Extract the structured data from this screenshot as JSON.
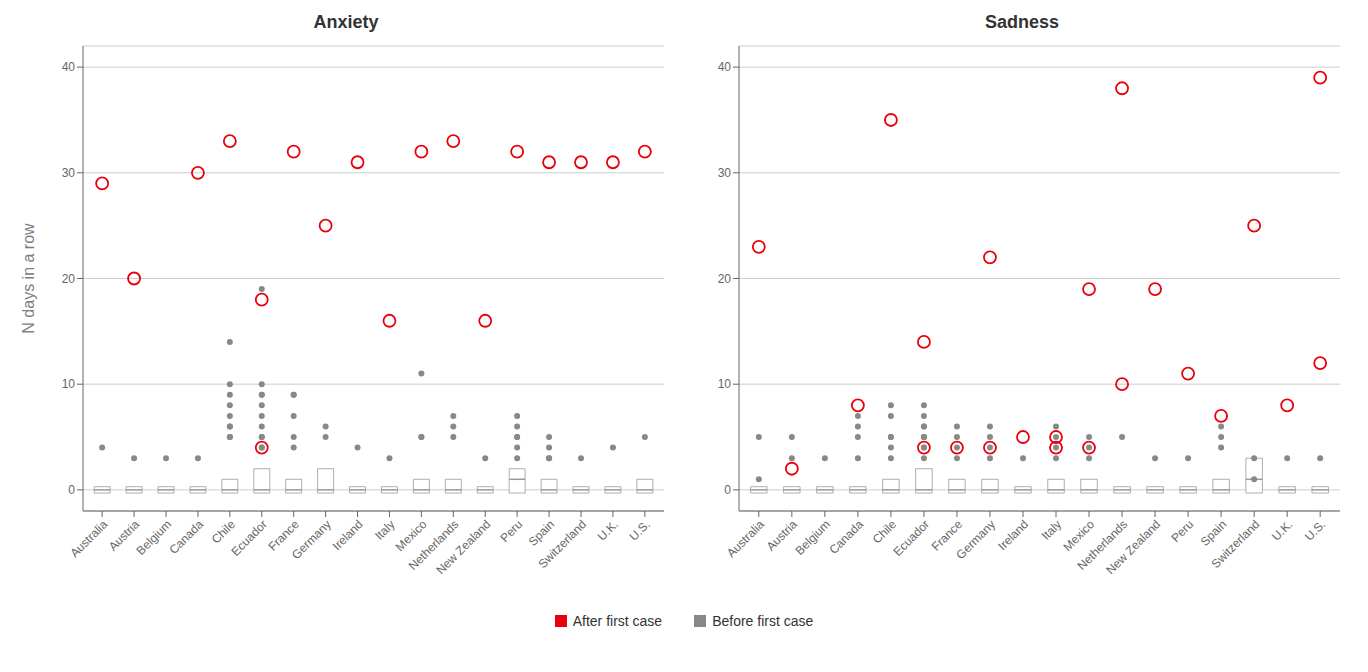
{
  "chart_data": [
    {
      "type": "box",
      "title": "Anxiety",
      "ylabel": "N days in a row",
      "categories": [
        "Australia",
        "Austria",
        "Belgium",
        "Canada",
        "Chile",
        "Ecuador",
        "France",
        "Germany",
        "Ireland",
        "Italy",
        "Mexico",
        "Netherlands",
        "New Zealand",
        "Peru",
        "Spain",
        "Switzerland",
        "U.K.",
        "U.S."
      ],
      "ylim": [
        -2,
        42
      ],
      "yticks": [
        0,
        10,
        20,
        30,
        40
      ],
      "grid": true,
      "legend": "bottom",
      "boxes": [
        {
          "q1": -0.3,
          "q3": 0.3,
          "med": 0
        },
        {
          "q1": -0.3,
          "q3": 0.3,
          "med": 0
        },
        {
          "q1": -0.3,
          "q3": 0.3,
          "med": 0
        },
        {
          "q1": -0.3,
          "q3": 0.3,
          "med": 0
        },
        {
          "q1": -0.3,
          "q3": 1.0,
          "med": 0
        },
        {
          "q1": -0.3,
          "q3": 2.0,
          "med": 0
        },
        {
          "q1": -0.3,
          "q3": 1.0,
          "med": 0
        },
        {
          "q1": -0.3,
          "q3": 2.0,
          "med": 0
        },
        {
          "q1": -0.3,
          "q3": 0.3,
          "med": 0
        },
        {
          "q1": -0.3,
          "q3": 0.3,
          "med": 0
        },
        {
          "q1": -0.3,
          "q3": 1.0,
          "med": 0
        },
        {
          "q1": -0.3,
          "q3": 1.0,
          "med": 0
        },
        {
          "q1": -0.3,
          "q3": 0.3,
          "med": 0
        },
        {
          "q1": -0.3,
          "q3": 2.0,
          "med": 1
        },
        {
          "q1": -0.3,
          "q3": 1.0,
          "med": 0
        },
        {
          "q1": -0.3,
          "q3": 0.3,
          "med": 0
        },
        {
          "q1": -0.3,
          "q3": 0.3,
          "med": 0
        },
        {
          "q1": -0.3,
          "q3": 1.0,
          "med": 0
        }
      ],
      "series": [
        {
          "name": "After first case",
          "color": "#E8000B",
          "marker": "open_circle",
          "values": [
            [
              29
            ],
            [
              20
            ],
            [],
            [
              30
            ],
            [
              33
            ],
            [
              18,
              4
            ],
            [
              32
            ],
            [
              25
            ],
            [
              31
            ],
            [
              16
            ],
            [
              32
            ],
            [
              33
            ],
            [
              16
            ],
            [
              32
            ],
            [
              31
            ],
            [
              31
            ],
            [
              31
            ],
            [
              32
            ]
          ]
        },
        {
          "name": "Before first case",
          "color": "#888888",
          "marker": "circle",
          "values": [
            [
              4
            ],
            [
              3
            ],
            [
              3
            ],
            [
              3
            ],
            [
              5,
              5,
              6,
              6,
              7,
              8,
              9,
              10,
              14
            ],
            [
              4,
              4,
              5,
              5,
              6,
              7,
              8,
              9,
              9,
              10,
              19
            ],
            [
              4,
              5,
              7,
              9,
              9
            ],
            [
              5,
              6
            ],
            [
              4
            ],
            [
              3
            ],
            [
              5,
              5,
              11
            ],
            [
              5,
              6,
              7
            ],
            [
              3
            ],
            [
              3,
              4,
              5,
              5,
              6,
              7
            ],
            [
              3,
              3,
              4,
              5
            ],
            [
              3
            ],
            [
              4
            ],
            [
              5
            ]
          ]
        }
      ]
    },
    {
      "type": "box",
      "title": "Sadness",
      "categories": [
        "Australia",
        "Austria",
        "Belgium",
        "Canada",
        "Chile",
        "Ecuador",
        "France",
        "Germany",
        "Ireland",
        "Italy",
        "Mexico",
        "Netherlands",
        "New Zealand",
        "Peru",
        "Spain",
        "Switzerland",
        "U.K.",
        "U.S."
      ],
      "ylim": [
        -2,
        42
      ],
      "yticks": [
        0,
        10,
        20,
        30,
        40
      ],
      "grid": true,
      "legend": "bottom",
      "boxes": [
        {
          "q1": -0.3,
          "q3": 0.3,
          "med": 0
        },
        {
          "q1": -0.3,
          "q3": 0.3,
          "med": 0
        },
        {
          "q1": -0.3,
          "q3": 0.3,
          "med": 0
        },
        {
          "q1": -0.3,
          "q3": 0.3,
          "med": 0
        },
        {
          "q1": -0.3,
          "q3": 1.0,
          "med": 0
        },
        {
          "q1": -0.3,
          "q3": 2.0,
          "med": 0
        },
        {
          "q1": -0.3,
          "q3": 1.0,
          "med": 0
        },
        {
          "q1": -0.3,
          "q3": 1.0,
          "med": 0
        },
        {
          "q1": -0.3,
          "q3": 0.3,
          "med": 0
        },
        {
          "q1": -0.3,
          "q3": 1.0,
          "med": 0
        },
        {
          "q1": -0.3,
          "q3": 1.0,
          "med": 0
        },
        {
          "q1": -0.3,
          "q3": 0.3,
          "med": 0
        },
        {
          "q1": -0.3,
          "q3": 0.3,
          "med": 0
        },
        {
          "q1": -0.3,
          "q3": 0.3,
          "med": 0
        },
        {
          "q1": -0.3,
          "q3": 1.0,
          "med": 0
        },
        {
          "q1": -0.3,
          "q3": 3.0,
          "med": 1
        },
        {
          "q1": -0.3,
          "q3": 0.3,
          "med": 0
        },
        {
          "q1": -0.3,
          "q3": 0.3,
          "med": 0
        }
      ],
      "series": [
        {
          "name": "After first case",
          "color": "#E8000B",
          "marker": "open_circle",
          "values": [
            [
              23
            ],
            [
              2
            ],
            [],
            [
              8
            ],
            [
              35
            ],
            [
              14,
              4
            ],
            [
              4
            ],
            [
              22,
              4
            ],
            [
              5
            ],
            [
              5,
              4
            ],
            [
              19,
              4
            ],
            [
              38,
              10
            ],
            [
              19
            ],
            [
              11
            ],
            [
              7
            ],
            [
              25
            ],
            [
              8
            ],
            [
              39,
              12
            ]
          ]
        },
        {
          "name": "Before first case",
          "color": "#888888",
          "marker": "circle",
          "values": [
            [
              1,
              5
            ],
            [
              3,
              5
            ],
            [
              3
            ],
            [
              3,
              5,
              6,
              7
            ],
            [
              3,
              4,
              5,
              5,
              7,
              8
            ],
            [
              3,
              4,
              4,
              5,
              5,
              5,
              6,
              6,
              7,
              8
            ],
            [
              3,
              4,
              5,
              6
            ],
            [
              3,
              4,
              5,
              6
            ],
            [
              3
            ],
            [
              3,
              4,
              5,
              6
            ],
            [
              3,
              4,
              5
            ],
            [
              5
            ],
            [
              3
            ],
            [
              3
            ],
            [
              4,
              5,
              6
            ],
            [
              1,
              3
            ],
            [
              3
            ],
            [
              3
            ]
          ]
        }
      ]
    }
  ]
}
